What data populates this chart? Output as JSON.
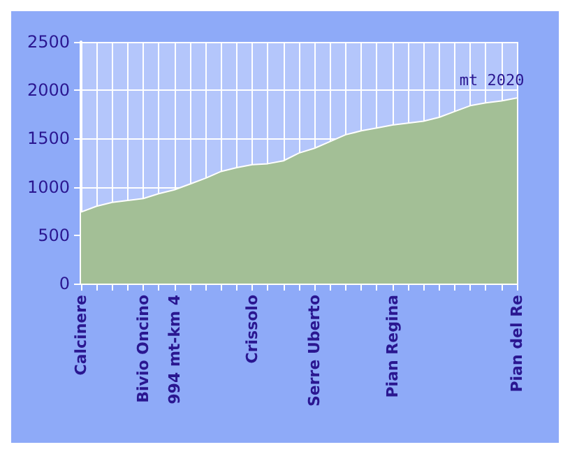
{
  "chart_data": {
    "type": "area",
    "categories": [
      "Calcinere",
      null,
      null,
      null,
      "Bivio Oncino",
      null,
      "994 mt-km 4",
      null,
      null,
      null,
      null,
      "Crissolo",
      null,
      null,
      null,
      "Serre Uberto",
      null,
      null,
      null,
      null,
      "Pian Regina",
      null,
      null,
      null,
      null,
      null,
      null,
      null,
      "Pian del Re"
    ],
    "series": [
      {
        "color": "#a3bf96",
        "values": [
          740,
          800,
          840,
          860,
          880,
          930,
          970,
          1030,
          1090,
          1160,
          1200,
          1230,
          1240,
          1270,
          1350,
          1400,
          1470,
          1540,
          1580,
          1610,
          1640,
          1660,
          1680,
          1720,
          1780,
          1840,
          1870,
          1890,
          1920
        ]
      }
    ],
    "ylim": [
      0,
      2500
    ],
    "yticks": [
      0,
      500,
      1000,
      1500,
      2000,
      2500
    ],
    "grid": true,
    "marker": "none",
    "annotations": [
      {
        "text": "mt 2020",
        "x": "Pian del Re",
        "y": 1920
      }
    ]
  }
}
